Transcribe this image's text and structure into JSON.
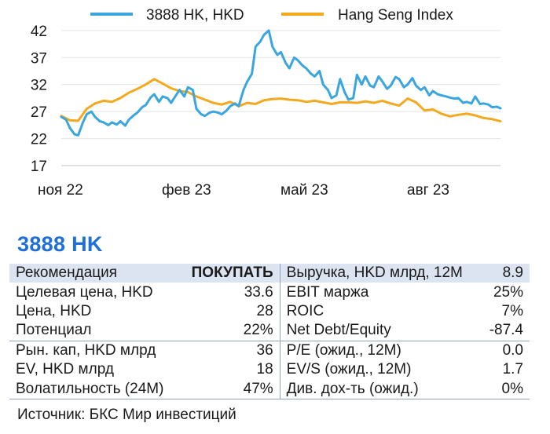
{
  "chart_data": {
    "type": "line",
    "legend": [
      "3888 HK, HKD",
      "Hang Seng Index"
    ],
    "colors": {
      "3888 HK, HKD": "#3aa6dd",
      "Hang Seng Index": "#f2a91e"
    },
    "x_tick_labels": [
      "ноя 22",
      "фев 23",
      "май 23",
      "авг 23"
    ],
    "y_ticks": [
      17,
      22,
      27,
      32,
      37,
      42
    ],
    "ylim": [
      17,
      43
    ],
    "grid": "horizontal",
    "legend_position": "top",
    "series": [
      {
        "name": "3888 HK, HKD",
        "x": [
          "2022-10-14",
          "2022-10-18",
          "2022-10-21",
          "2022-10-25",
          "2022-10-28",
          "2022-11-01",
          "2022-11-04",
          "2022-11-08",
          "2022-11-11",
          "2022-11-15",
          "2022-11-18",
          "2022-11-22",
          "2022-11-25",
          "2022-11-29",
          "2022-12-02",
          "2022-12-06",
          "2022-12-09",
          "2022-12-13",
          "2022-12-16",
          "2022-12-20",
          "2022-12-23",
          "2022-12-27",
          "2022-12-30",
          "2023-01-03",
          "2023-01-06",
          "2023-01-10",
          "2023-01-13",
          "2023-01-17",
          "2023-01-20",
          "2023-01-24",
          "2023-01-27",
          "2023-01-31",
          "2023-02-03",
          "2023-02-07",
          "2023-02-10",
          "2023-02-14",
          "2023-02-17",
          "2023-02-21",
          "2023-02-24",
          "2023-02-28",
          "2023-03-03",
          "2023-03-07",
          "2023-03-10",
          "2023-03-14",
          "2023-03-17",
          "2023-03-21",
          "2023-03-24",
          "2023-03-28",
          "2023-03-31",
          "2023-04-04",
          "2023-04-07",
          "2023-04-11",
          "2023-04-14",
          "2023-04-18",
          "2023-04-21",
          "2023-04-25",
          "2023-04-28",
          "2023-05-02",
          "2023-05-05",
          "2023-05-09",
          "2023-05-12",
          "2023-05-16",
          "2023-05-19",
          "2023-05-23",
          "2023-05-26",
          "2023-05-30",
          "2023-06-02",
          "2023-06-06",
          "2023-06-09",
          "2023-06-13",
          "2023-06-16",
          "2023-06-20",
          "2023-06-23",
          "2023-06-27",
          "2023-06-30",
          "2023-07-04",
          "2023-07-07",
          "2023-07-11",
          "2023-07-14",
          "2023-07-18",
          "2023-07-21",
          "2023-07-25",
          "2023-07-28",
          "2023-08-01",
          "2023-08-04",
          "2023-08-08",
          "2023-08-11",
          "2023-08-15",
          "2023-08-18",
          "2023-08-22",
          "2023-08-25",
          "2023-08-29",
          "2023-09-01",
          "2023-09-05",
          "2023-09-08",
          "2023-09-12",
          "2023-09-15",
          "2023-09-19",
          "2023-09-22",
          "2023-09-26",
          "2023-09-29",
          "2023-10-03",
          "2023-10-06",
          "2023-10-10",
          "2023-10-13"
        ],
        "values": [
          26,
          25.5,
          24,
          22.8,
          22.6,
          25,
          26.5,
          27,
          26,
          25.2,
          25,
          24.5,
          25,
          24.6,
          25.2,
          24.4,
          25.5,
          26.3,
          26.8,
          27.8,
          28.2,
          29.6,
          30.2,
          28.8,
          29.8,
          29.5,
          28.6,
          30,
          31,
          29.8,
          31.5,
          31,
          27.5,
          26.5,
          26.2,
          26.8,
          27,
          26.8,
          26.5,
          27.2,
          28,
          28.5,
          28,
          31,
          32.5,
          34,
          39,
          40,
          41.2,
          42,
          39,
          37.5,
          38,
          36,
          35,
          37,
          36.5,
          35.5,
          35,
          34,
          33.5,
          34.5,
          32,
          31,
          29.5,
          30,
          33,
          30.5,
          29.2,
          29.5,
          33.8,
          32,
          33.5,
          31.8,
          31.5,
          33.5,
          32.6,
          31.2,
          31.8,
          33.4,
          33,
          31.5,
          32,
          33.2,
          31.8,
          31,
          31.5,
          30,
          30.8,
          30.2,
          30,
          29.8,
          29.6,
          29.4,
          29.5,
          28.6,
          28.8,
          28.5,
          29.8,
          28.4,
          28.5,
          28.3,
          27.8,
          27.9,
          27.6
        ]
      },
      {
        "name": "Hang Seng Index",
        "x": [
          "2022-10-14",
          "2022-10-21",
          "2022-10-28",
          "2022-11-04",
          "2022-11-11",
          "2022-11-18",
          "2022-11-25",
          "2022-12-02",
          "2022-12-09",
          "2022-12-16",
          "2022-12-23",
          "2022-12-30",
          "2023-01-06",
          "2023-01-13",
          "2023-01-20",
          "2023-01-27",
          "2023-02-03",
          "2023-02-10",
          "2023-02-17",
          "2023-02-24",
          "2023-03-03",
          "2023-03-10",
          "2023-03-17",
          "2023-03-24",
          "2023-03-31",
          "2023-04-07",
          "2023-04-14",
          "2023-04-21",
          "2023-04-28",
          "2023-05-05",
          "2023-05-12",
          "2023-05-19",
          "2023-05-26",
          "2023-06-02",
          "2023-06-09",
          "2023-06-16",
          "2023-06-23",
          "2023-06-30",
          "2023-07-07",
          "2023-07-14",
          "2023-07-21",
          "2023-07-28",
          "2023-08-04",
          "2023-08-11",
          "2023-08-18",
          "2023-08-25",
          "2023-09-01",
          "2023-09-08",
          "2023-09-15",
          "2023-09-22",
          "2023-09-29",
          "2023-10-06",
          "2023-10-13"
        ],
        "values": [
          26.2,
          25.4,
          25.3,
          27.5,
          28.5,
          29,
          28.8,
          29.5,
          30.5,
          31.2,
          32,
          33,
          32.2,
          31.3,
          30.8,
          30.6,
          29.8,
          29.2,
          28.6,
          28.3,
          28.8,
          28,
          28.6,
          28.4,
          29.1,
          29.3,
          29.4,
          29.2,
          29.1,
          28.8,
          29,
          28.7,
          28.4,
          28.7,
          28.7,
          28.6,
          28.9,
          28.6,
          29,
          28.5,
          28.1,
          29.4,
          28.7,
          27.2,
          27.4,
          26.6,
          26.1,
          26.4,
          26.6,
          26.3,
          25.8,
          25.6,
          25.2
        ]
      }
    ]
  },
  "stock": {
    "ticker": "3888 HK",
    "rows": [
      {
        "left_label": "Рекомендация",
        "left_value": "ПОКУПАТЬ",
        "right_label": "Выручка, HKD млрд, 12M",
        "right_value": "8.9"
      },
      {
        "left_label": "Целевая цена, HKD",
        "left_value": "33.6",
        "right_label": "EBIT маржа",
        "right_value": "25%"
      },
      {
        "left_label": "Цена, HKD",
        "left_value": "28",
        "right_label": "ROIC",
        "right_value": "7%"
      },
      {
        "left_label": "Потенциал",
        "left_value": "22%",
        "right_label": "Net Debt/Equity",
        "right_value": "-87.4"
      },
      {
        "left_label": "Рын. кап, HKD млрд",
        "left_value": "36",
        "right_label": "P/E (ожид., 12M)",
        "right_value": "0.0"
      },
      {
        "left_label": "EV, HKD млрд",
        "left_value": "18",
        "right_label": "EV/S (ожид., 12M)",
        "right_value": "1.7"
      },
      {
        "left_label": "Волатильность (24M)",
        "left_value": "47%",
        "right_label": "Див. дох-ть (ожид.)",
        "right_value": "0%"
      }
    ]
  },
  "source": "Источник: БКС Мир инвестиций"
}
